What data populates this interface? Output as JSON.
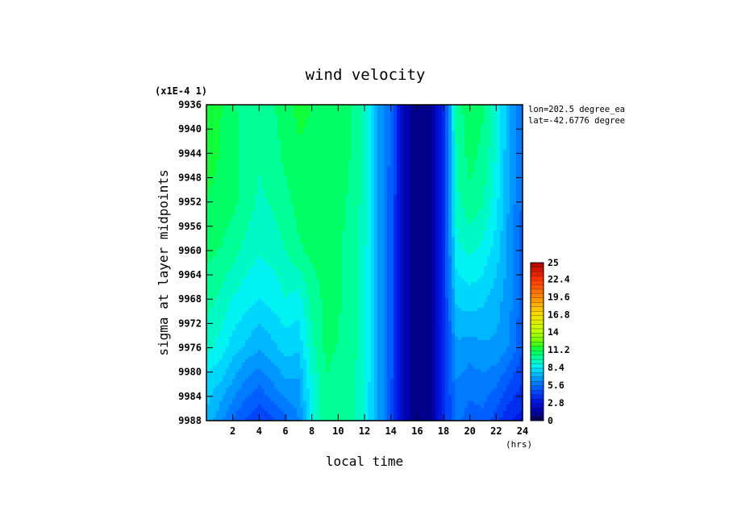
{
  "chart_data": {
    "type": "heatmap",
    "title": "wind velocity",
    "xlabel": "local time",
    "ylabel": "sigma at layer midpoints",
    "y_multiplier": "(x1E-4 1)",
    "x_unit": "(hrs)",
    "x_ticks": [
      "2",
      "4",
      "6",
      "8",
      "10",
      "12",
      "14",
      "16",
      "18",
      "20",
      "22",
      "24"
    ],
    "y_ticks": [
      "9936",
      "9940",
      "9944",
      "9948",
      "9952",
      "9956",
      "9960",
      "9964",
      "9968",
      "9972",
      "9976",
      "9980",
      "9984",
      "9988"
    ],
    "xlim": [
      0,
      24
    ],
    "ylim": [
      9936,
      9988
    ],
    "y_inverted": true,
    "annotations": [
      "lon=202.5 degree_ea",
      "lat=-42.6776 degree"
    ],
    "colorbar": {
      "ticks": [
        "25",
        "22.4",
        "19.6",
        "16.8",
        "14",
        "11.2",
        "8.4",
        "5.6",
        "2.8",
        "0"
      ],
      "range": [
        0,
        25
      ],
      "levels": 36
    },
    "x_values": [
      0,
      1,
      2,
      3,
      4,
      5,
      6,
      7,
      8,
      9,
      10,
      11,
      12,
      13,
      14,
      15,
      16,
      17,
      18,
      19,
      20,
      21,
      22,
      23,
      24
    ],
    "y_values": [
      9936,
      9944,
      9952,
      9960,
      9968,
      9976,
      9982,
      9988
    ],
    "z_values": [
      [
        11.6,
        11.2,
        10.5,
        10.2,
        10.1,
        10.3,
        10.9,
        11.3,
        11.1,
        10.8,
        10.7,
        10.5,
        9.5,
        7.0,
        5.3,
        2.0,
        0.7,
        0.8,
        4.0,
        10.0,
        11.0,
        10.5,
        9.2,
        7.0,
        5.5
      ],
      [
        11.4,
        11.1,
        10.7,
        10.2,
        9.8,
        10.1,
        10.6,
        11.0,
        11.0,
        10.8,
        10.7,
        10.4,
        9.4,
        7.0,
        5.3,
        2.0,
        0.7,
        0.8,
        4.0,
        9.8,
        10.7,
        10.2,
        9.0,
        6.9,
        5.4
      ],
      [
        11.1,
        10.9,
        10.6,
        10.1,
        9.6,
        9.8,
        10.2,
        10.7,
        10.9,
        10.8,
        10.6,
        10.3,
        9.4,
        7.0,
        5.2,
        2.0,
        0.7,
        0.8,
        4.0,
        9.5,
        10.2,
        9.8,
        8.6,
        6.8,
        5.4
      ],
      [
        10.6,
        10.4,
        10.0,
        9.5,
        9.1,
        9.3,
        9.7,
        10.3,
        10.6,
        10.7,
        10.5,
        10.2,
        9.3,
        7.0,
        5.2,
        2.0,
        0.7,
        0.8,
        3.9,
        8.8,
        9.2,
        8.8,
        8.0,
        6.7,
        5.3
      ],
      [
        10.0,
        9.6,
        9.0,
        8.6,
        8.3,
        8.6,
        9.0,
        8.7,
        10.0,
        10.6,
        10.5,
        10.2,
        9.2,
        7.0,
        5.2,
        2.0,
        0.7,
        0.8,
        3.9,
        7.8,
        8.0,
        7.8,
        7.3,
        6.5,
        5.2
      ],
      [
        9.3,
        8.8,
        8.0,
        7.5,
        7.0,
        7.4,
        7.9,
        7.8,
        9.5,
        10.5,
        10.4,
        10.1,
        9.2,
        7.0,
        5.2,
        2.0,
        0.7,
        0.8,
        3.8,
        6.8,
        6.6,
        6.8,
        6.8,
        6.2,
        4.9
      ],
      [
        8.0,
        7.6,
        6.8,
        6.0,
        5.6,
        6.2,
        6.8,
        6.8,
        9.0,
        10.4,
        10.3,
        10.0,
        9.1,
        7.0,
        5.1,
        2.0,
        0.7,
        0.8,
        3.7,
        6.2,
        5.8,
        6.0,
        5.6,
        4.8,
        4.1
      ],
      [
        7.5,
        6.5,
        5.5,
        4.8,
        4.3,
        4.7,
        5.3,
        6.2,
        8.8,
        10.3,
        10.2,
        9.9,
        9.0,
        7.0,
        5.1,
        2.0,
        0.7,
        0.8,
        3.7,
        5.8,
        5.2,
        5.3,
        4.5,
        3.5,
        3.2
      ]
    ]
  }
}
